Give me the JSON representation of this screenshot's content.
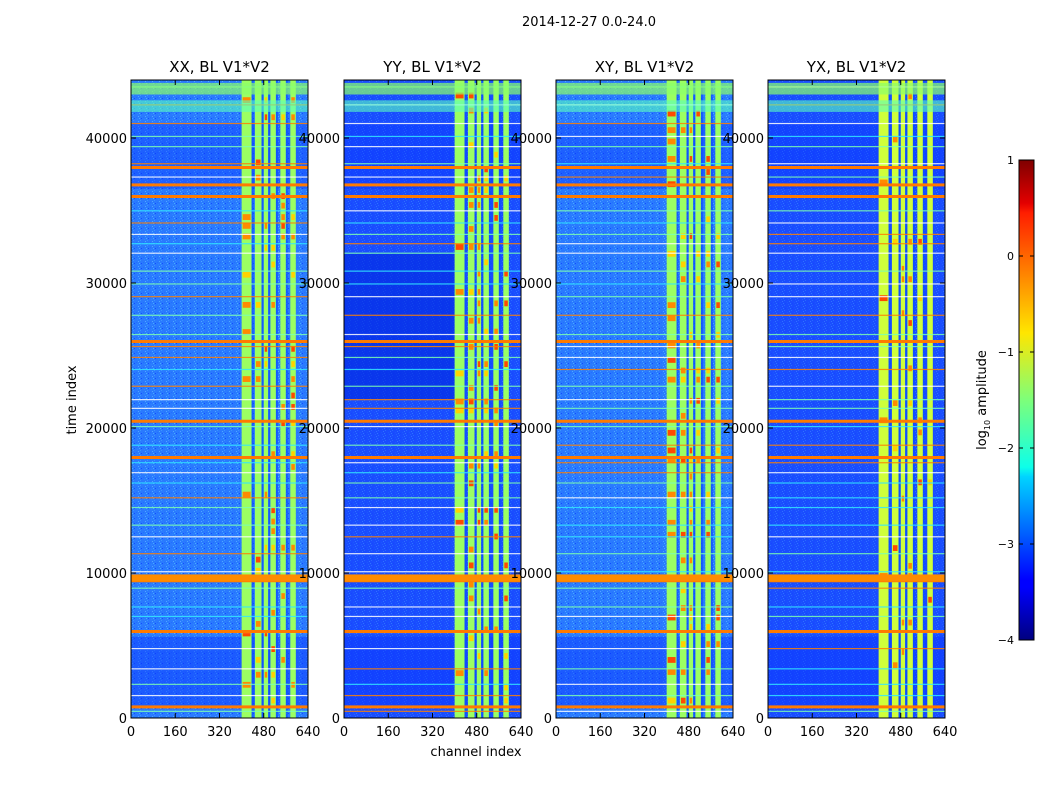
{
  "chart_data": {
    "type": "heatmap",
    "suptitle": "2014-12-27 0.0-24.0",
    "xlabel": "channel index",
    "ylabel": "time index",
    "xlim": [
      0,
      640
    ],
    "ylim": [
      0,
      44000
    ],
    "x_ticks": [
      "0",
      "160",
      "320",
      "480",
      "640"
    ],
    "y_ticks": [
      "0",
      "10000",
      "20000",
      "30000",
      "40000"
    ],
    "panels": [
      {
        "title": "XX, BL V1*V2"
      },
      {
        "title": "YY, BL V1*V2"
      },
      {
        "title": "XY, BL V1*V2"
      },
      {
        "title": "YX, BL V1*V2"
      }
    ],
    "colorbar": {
      "label": "log10 amplitude",
      "label_text": "log",
      "label_sub": "10",
      "label_rest": " amplitude",
      "range": [
        -4,
        1
      ],
      "ticks": [
        "1",
        "0",
        "−1",
        "−2",
        "−3",
        "−4"
      ],
      "colormap": "jet"
    },
    "features": {
      "rfi_band_channels": [
        [
          400,
          600
        ]
      ],
      "bright_row_times": [
        9800,
        9500,
        6000,
        36000,
        36800,
        38000,
        26000,
        18000,
        20500,
        800
      ]
    }
  }
}
